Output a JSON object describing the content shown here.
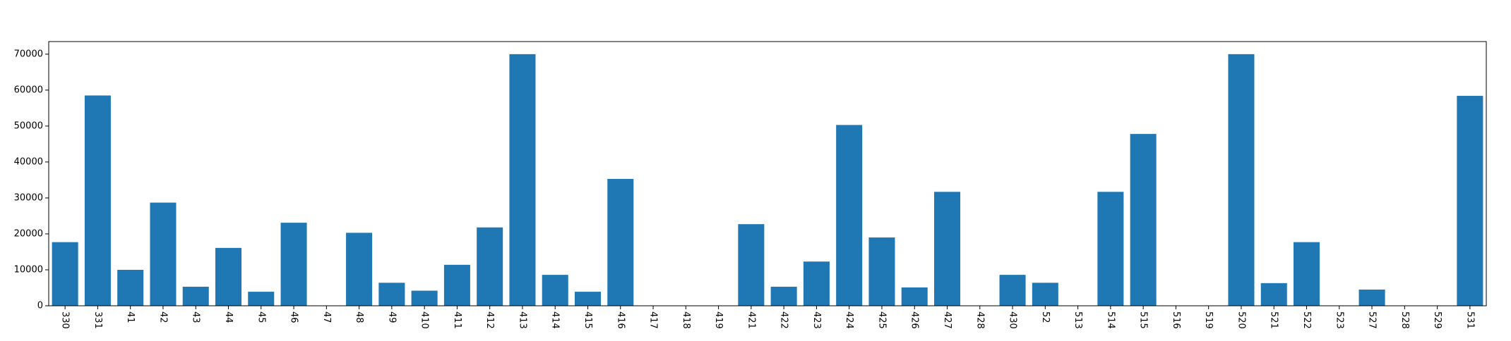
{
  "chart_data": {
    "type": "bar",
    "title": "",
    "xlabel": "",
    "ylabel": "",
    "categories": [
      "330",
      "331",
      "41",
      "42",
      "43",
      "44",
      "45",
      "46",
      "47",
      "48",
      "49",
      "410",
      "411",
      "412",
      "413",
      "414",
      "415",
      "416",
      "417",
      "418",
      "419",
      "421",
      "422",
      "423",
      "424",
      "425",
      "426",
      "427",
      "428",
      "430",
      "52",
      "513",
      "514",
      "515",
      "516",
      "519",
      "520",
      "521",
      "522",
      "523",
      "527",
      "528",
      "529",
      "531"
    ],
    "values": [
      17700,
      58500,
      10000,
      28700,
      5300,
      16100,
      3900,
      23100,
      0,
      20300,
      6400,
      4200,
      11400,
      21800,
      70000,
      8600,
      3900,
      35300,
      0,
      0,
      0,
      22700,
      5300,
      12300,
      50300,
      19000,
      5100,
      31700,
      0,
      8600,
      6400,
      0,
      31700,
      47800,
      0,
      0,
      70000,
      6300,
      17700,
      0,
      4500,
      0,
      0,
      58400
    ],
    "ylim": [
      0,
      73500
    ],
    "yticks": [
      0,
      10000,
      20000,
      30000,
      40000,
      50000,
      60000,
      70000
    ],
    "bar_color": "#1f77b4",
    "grid": false,
    "x_tick_rotation": "vertical"
  }
}
